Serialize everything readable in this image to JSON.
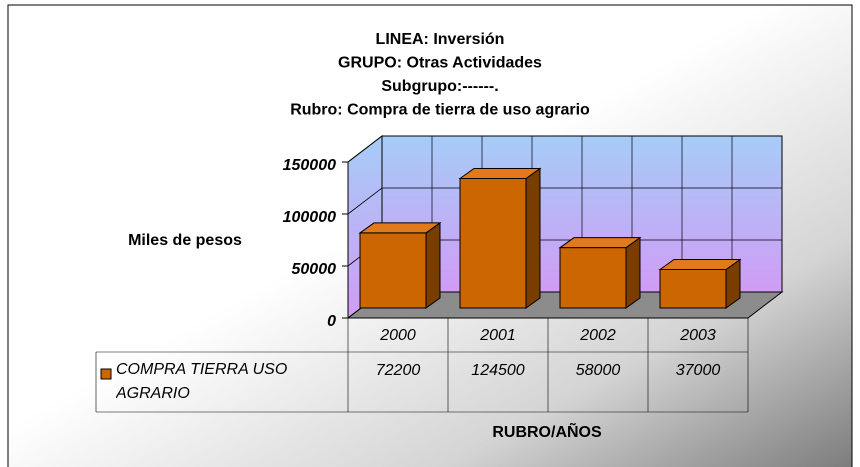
{
  "chart_data": {
    "type": "bar3d",
    "title_lines": [
      "LINEA: Inversión",
      "GRUPO: Otras Actividades",
      "Subgrupo:------.",
      "Rubro: Compra de tierra de uso agrario"
    ],
    "ylabel": "Miles de pesos",
    "xlabel": "RUBRO/AÑOS",
    "categories": [
      "2000",
      "2001",
      "2002",
      "2003"
    ],
    "series": [
      {
        "name": "COMPRA TIERRA USO AGRARIO",
        "color": "#cc6600",
        "values": [
          72200,
          124500,
          58000,
          37000
        ]
      }
    ],
    "ylim": [
      0,
      150000
    ],
    "yticks": [
      0,
      50000,
      100000,
      150000
    ],
    "grid": true
  }
}
